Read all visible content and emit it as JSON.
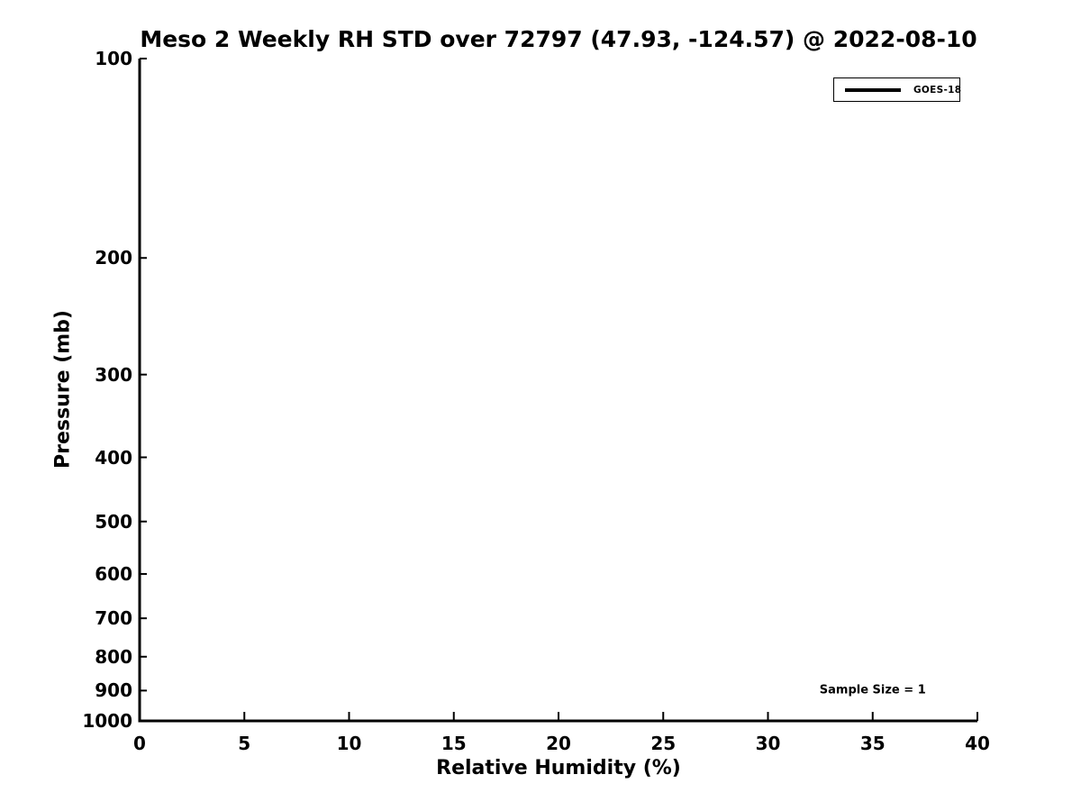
{
  "figure": {
    "background": "#ffffff",
    "foreground": "#000000"
  },
  "chart_data": {
    "type": "line",
    "title": "Meso 2 Weekly RH STD over 72797 (47.93, -124.57) @ 2022-08-10",
    "xlabel": "Relative Humidity (%)",
    "ylabel": "Pressure (mb)",
    "x_axis": {
      "scale": "linear",
      "min": 0,
      "max": 40,
      "ticks": [
        0,
        5,
        10,
        15,
        20,
        25,
        30,
        35,
        40
      ]
    },
    "y_axis": {
      "scale": "log",
      "inverted": true,
      "top_value": 100,
      "bottom_value": 1000,
      "ticks": [
        100,
        200,
        300,
        400,
        500,
        600,
        700,
        800,
        900,
        1000
      ]
    },
    "grid": false,
    "spines": [
      "left",
      "bottom"
    ],
    "tick_direction": "in",
    "legend": {
      "position": "upper-right",
      "entries": [
        {
          "label": "GOES-18",
          "color": "#000000",
          "style": "line"
        }
      ]
    },
    "series": [
      {
        "name": "GOES-18",
        "color": "#000000",
        "line_width": 2,
        "points": []
      }
    ],
    "annotations": [
      {
        "text": "Sample Size = 1",
        "x": 35,
        "y": 900
      }
    ]
  }
}
